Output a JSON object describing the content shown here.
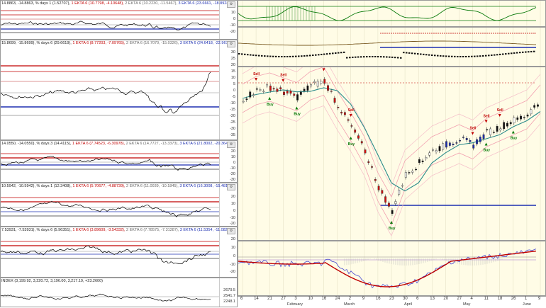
{
  "left_panels": [
    {
      "id": "p1",
      "header": [
        "14.8863, -14.8863, ",
        "% days 1 (1.52707), ",
        "1 EKTA 6 (10.7798, -4.10648), ",
        "2 EKTA 6 (10.2230, -11.5467), ",
        "3 EKTA 6 (23.6661, -18.8928)"
      ],
      "ticks": [
        "20",
        "10",
        "0",
        "-10",
        "-20"
      ]
    },
    {
      "id": "p2",
      "header": [
        "15.8699, -15.8699), ",
        "% days 6 (29.6619), ",
        "1 EKTA 6 (8.77203, -7.09765), ",
        "2 EKTA 6 (16.7070, -15.0326), ",
        "3 EKTA 6 (24.6418, -22.9677)"
      ],
      "ticks": [
        "30",
        "25",
        "20",
        "15",
        "10",
        "5",
        "0",
        "-5",
        "-10",
        "-15",
        "-20",
        "-25",
        "-30",
        "-35"
      ]
    },
    {
      "id": "p3",
      "header": [
        "14.0550, -14.0550), ",
        "% days 3 (14.4115), ",
        "1 EKTA 6 (7.74523, -6.30978), ",
        "2 EKTA 6 (14.7727, -13.3373), ",
        "3 EKTA 6 (21.8002, -20.3648)"
      ],
      "ticks": [
        "20",
        "10",
        "0",
        "-10",
        "-20",
        "-30"
      ]
    },
    {
      "id": "p4",
      "header": [
        "10.5942, -10.5942), ",
        "% days 1 (12.3408), ",
        "1 EKTA 6 (5.70677, -4.88739), ",
        "2 EKTA 6 (11.0039, -10.1845), ",
        "3 EKTA 6 (16.3008, -15.4816)"
      ],
      "ticks": [
        "20",
        "10",
        "0",
        "-10",
        "-20"
      ]
    },
    {
      "id": "p5",
      "header": [
        "7.53931, -7.53931), ",
        "% days 6 (5.96351), ",
        "1 EKTA 6 (3.89609, -3.54332), ",
        "2 EKTA 6 (7.78575, -7.31287), ",
        "3 EKTA 6 (11.5354, -11.0825)"
      ],
      "ticks": [
        "20",
        "10",
        "0",
        "-10",
        "-20"
      ]
    },
    {
      "id": "p6",
      "header": [
        "INDEX (3,199.92, ",
        "3,220.72, ",
        "3,196.00, ",
        "3,217.19, ",
        "+23.2600)"
      ],
      "ticks": [
        "2679.5",
        "2541.7",
        "2248.1"
      ]
    }
  ],
  "right": {
    "x_labels": [
      "6",
      "14",
      "21",
      "27",
      "3",
      "10",
      "16",
      "24",
      "2",
      "9",
      "16",
      "23",
      "30",
      "6",
      "13",
      "20",
      "27",
      "4",
      "11",
      "18",
      "26",
      "1",
      "9"
    ],
    "months": [
      "February",
      "March",
      "April",
      "May",
      "June"
    ],
    "sell_label": "Sell",
    "buy_label": "Buy"
  },
  "chart_data": {
    "type": "line",
    "title": "",
    "dates": [
      "Jan 6",
      "Jan 14",
      "Jan 21",
      "Jan 27",
      "Feb 3",
      "Feb 10",
      "Feb 16",
      "Feb 24",
      "Mar 2",
      "Mar 9",
      "Mar 16",
      "Mar 23",
      "Mar 30",
      "Apr 6",
      "Apr 13",
      "Apr 20",
      "Apr 27",
      "May 4",
      "May 11",
      "May 18",
      "May 26",
      "Jun 1",
      "Jun 9"
    ],
    "series": [
      {
        "values": [
          3235,
          3300,
          3330,
          3290,
          3250,
          3340,
          3380,
          3180,
          3000,
          2800,
          2500,
          2300,
          2600,
          2700,
          2800,
          2850,
          2900,
          2850,
          2950,
          3000,
          3050,
          3100,
          3230
        ]
      }
    ],
    "signals": [
      {
        "type": "Sell",
        "date": "Jan 14"
      },
      {
        "type": "Buy",
        "date": "Jan 21"
      },
      {
        "type": "Sell",
        "date": "Jan 27"
      },
      {
        "type": "Buy",
        "date": "Feb 3"
      },
      {
        "type": "Sell",
        "date": "Feb 16"
      },
      {
        "type": "Sell",
        "date": "Mar 2"
      },
      {
        "type": "Buy",
        "date": "Mar 2"
      },
      {
        "type": "Buy",
        "date": "Mar 23"
      },
      {
        "type": "Sell",
        "date": "May 4"
      },
      {
        "type": "Sell",
        "date": "May 11"
      },
      {
        "type": "Buy",
        "date": "May 11"
      },
      {
        "type": "Sell",
        "date": "May 18"
      },
      {
        "type": "Buy",
        "date": "May 26"
      }
    ],
    "grid": true
  }
}
